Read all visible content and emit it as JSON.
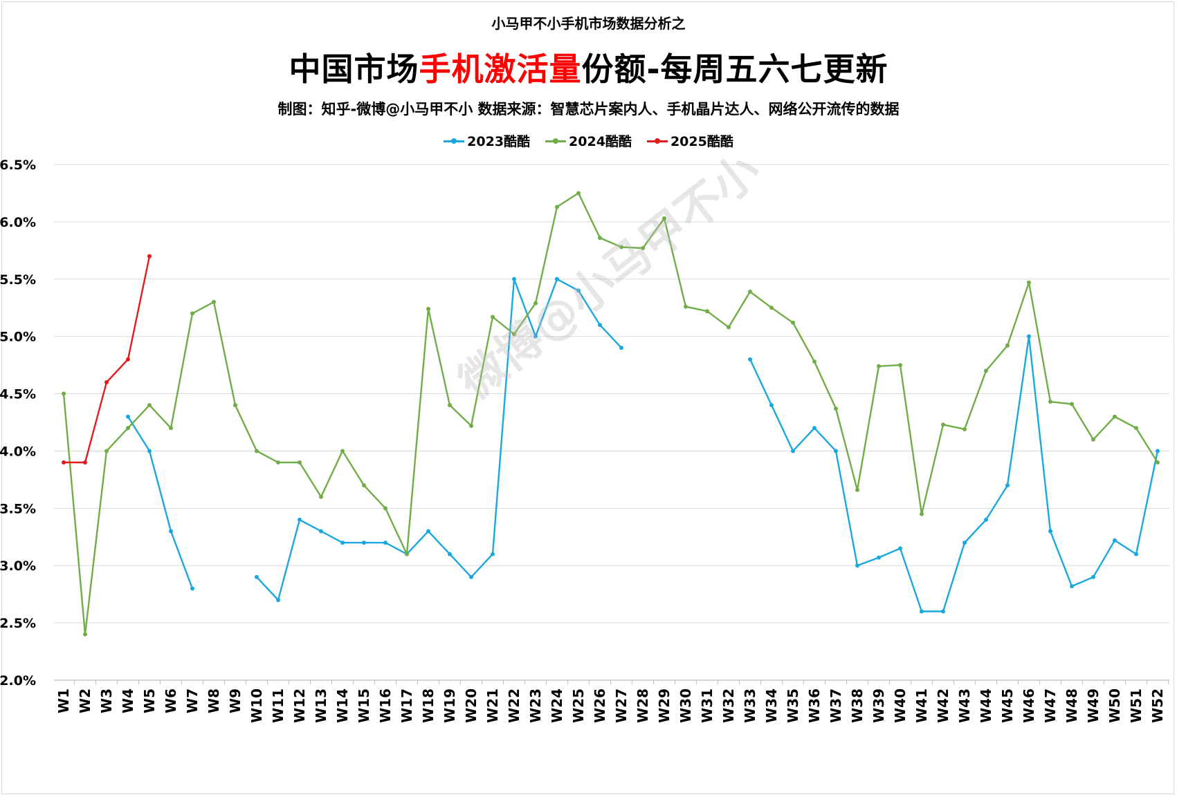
{
  "header": {
    "supertitle": "小马甲不小手机市场数据分析之",
    "title_parts": [
      "中国市场",
      "手机激活量",
      "份额-每周五六七更新"
    ],
    "subtitle": "制图：知乎-微博@小马甲不小  数据来源：智慧芯片案内人、手机晶片达人、网络公开流传的数据",
    "watermark": "微博@小马甲不小"
  },
  "chart_data": {
    "type": "line",
    "title": "中国市场手机激活量份额-每周五六七更新",
    "xlabel": "",
    "ylabel": "",
    "ylim": [
      2.0,
      6.5
    ],
    "yticks": [
      "2.0%",
      "2.5%",
      "3.0%",
      "3.5%",
      "4.0%",
      "4.5%",
      "5.0%",
      "5.5%",
      "6.0%",
      "6.5%"
    ],
    "grid": true,
    "legend_position": "top",
    "categories": [
      "W1",
      "W2",
      "W3",
      "W4",
      "W5",
      "W6",
      "W7",
      "W8",
      "W9",
      "W10",
      "W11",
      "W12",
      "W13",
      "W14",
      "W15",
      "W16",
      "W17",
      "W18",
      "W19",
      "W20",
      "W21",
      "W22",
      "W23",
      "W24",
      "W25",
      "W26",
      "W27",
      "W28",
      "W29",
      "W30",
      "W31",
      "W32",
      "W33",
      "W34",
      "W35",
      "W36",
      "W37",
      "W38",
      "W39",
      "W40",
      "W41",
      "W42",
      "W43",
      "W44",
      "W45",
      "W46",
      "W47",
      "W48",
      "W49",
      "W50",
      "W51",
      "W52"
    ],
    "series": [
      {
        "name": "2023酷酷",
        "color": "#1aa7e0",
        "values": [
          null,
          null,
          null,
          4.3,
          4.0,
          3.3,
          2.8,
          null,
          null,
          2.9,
          2.7,
          3.4,
          3.3,
          3.2,
          3.2,
          3.2,
          3.1,
          3.3,
          3.1,
          2.9,
          3.1,
          5.5,
          5.0,
          5.5,
          5.4,
          5.1,
          4.9,
          null,
          null,
          null,
          null,
          null,
          4.8,
          4.4,
          4.0,
          4.2,
          4.0,
          3.0,
          3.07,
          3.15,
          2.6,
          2.6,
          3.2,
          3.4,
          3.7,
          5.0,
          3.3,
          2.82,
          2.9,
          3.22,
          3.1,
          4.0
        ]
      },
      {
        "name": "2024酷酷",
        "color": "#70ad47",
        "values": [
          4.5,
          2.4,
          4.0,
          4.2,
          4.4,
          4.2,
          5.2,
          5.3,
          4.4,
          4.0,
          3.9,
          3.9,
          3.6,
          4.0,
          3.7,
          3.5,
          3.1,
          5.24,
          4.4,
          4.22,
          5.17,
          5.02,
          5.29,
          6.13,
          6.25,
          5.86,
          5.78,
          5.77,
          6.03,
          5.26,
          5.22,
          5.08,
          5.39,
          5.25,
          5.12,
          4.78,
          4.37,
          3.66,
          4.74,
          4.75,
          3.45,
          4.23,
          4.19,
          4.7,
          4.92,
          5.47,
          4.43,
          4.41,
          4.1,
          4.3,
          4.2,
          3.9
        ]
      },
      {
        "name": "2025酷酷",
        "color": "#e31a1c",
        "values": [
          3.9,
          3.9,
          4.6,
          4.8,
          5.7,
          null,
          null,
          null,
          null,
          null,
          null,
          null,
          null,
          null,
          null,
          null,
          null,
          null,
          null,
          null,
          null,
          null,
          null,
          null,
          null,
          null,
          null,
          null,
          null,
          null,
          null,
          null,
          null,
          null,
          null,
          null,
          null,
          null,
          null,
          null,
          null,
          null,
          null,
          null,
          null,
          null,
          null,
          null,
          null,
          null,
          null,
          null
        ]
      }
    ]
  }
}
